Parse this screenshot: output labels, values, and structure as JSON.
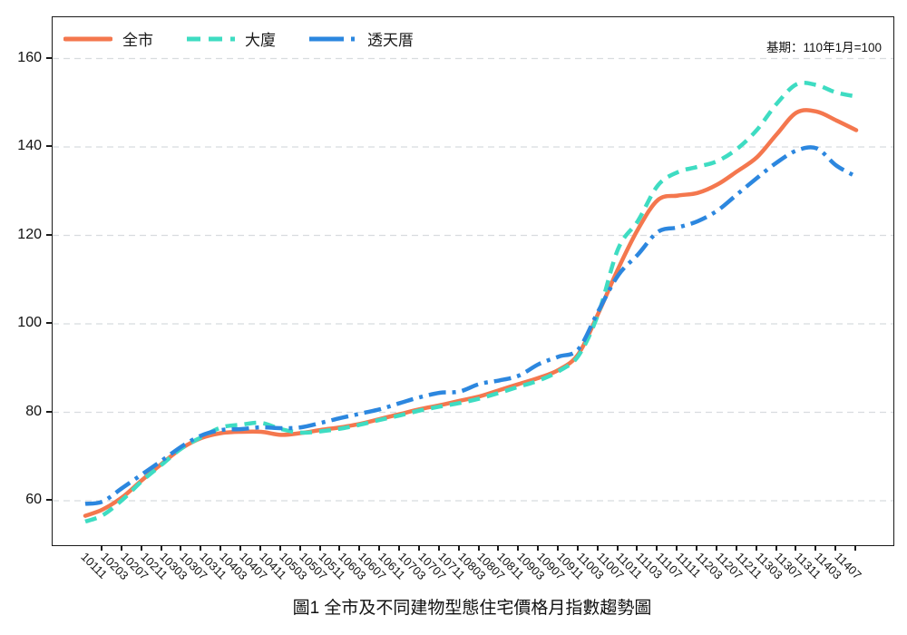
{
  "figure": {
    "base_note": "基期：110年1月=100",
    "title": "圖1 全市及不同建物型態住宅價格月指數趨勢圖"
  },
  "chart_data": {
    "type": "line",
    "title": "圖1 全市及不同建物型態住宅價格月指數趨勢圖",
    "annotation": "基期：110年1月=100",
    "xlabel": "",
    "ylabel": "",
    "y_ticks": [
      60,
      80,
      100,
      120,
      140,
      160
    ],
    "ylim": [
      50,
      169
    ],
    "grid": "horizontal-dashed",
    "legend_position": "top-left-inside",
    "categories": [
      "10111",
      "10203",
      "10207",
      "10211",
      "10303",
      "10307",
      "10311",
      "10403",
      "10407",
      "10411",
      "10503",
      "10507",
      "10511",
      "10603",
      "10607",
      "10611",
      "10703",
      "10707",
      "10711",
      "10803",
      "10807",
      "10811",
      "10903",
      "10907",
      "10911",
      "11003",
      "11007",
      "11011",
      "11103",
      "11107",
      "11111",
      "11203",
      "11207",
      "11211",
      "11303",
      "11307",
      "11311",
      "11403",
      "11407"
    ],
    "series": [
      {
        "name": "全市",
        "color": "#F4774E",
        "style": "solid",
        "lead_in_value": 56.6,
        "values": [
          58.0,
          60.8,
          64.7,
          68.4,
          71.9,
          74.2,
          75.3,
          75.6,
          75.6,
          74.9,
          75.3,
          76.0,
          76.6,
          77.4,
          78.5,
          79.6,
          80.7,
          81.6,
          82.6,
          83.6,
          85.0,
          86.4,
          87.8,
          89.6,
          93.2,
          102.4,
          112.5,
          121.4,
          128.0,
          129.0,
          129.6,
          131.5,
          134.5,
          137.7,
          142.9,
          147.8,
          148.0,
          146.0,
          143.8
        ]
      },
      {
        "name": "大廈",
        "color": "#3EDCC2",
        "style": "dashed",
        "lead_in_value": 55.3,
        "values": [
          56.7,
          60.2,
          64.5,
          68.2,
          71.9,
          74.4,
          76.6,
          77.2,
          77.6,
          76.2,
          75.4,
          75.7,
          76.3,
          77.2,
          78.3,
          79.3,
          80.4,
          81.3,
          82.1,
          83.1,
          84.4,
          85.8,
          87.2,
          89.3,
          92.8,
          102.3,
          117.0,
          123.3,
          131.3,
          134.3,
          135.5,
          136.8,
          139.6,
          143.9,
          149.8,
          154.2,
          154.0,
          152.3,
          151.4
        ]
      },
      {
        "name": "透天厝",
        "color": "#2C87DF",
        "style": "dashdot",
        "lead_in_value": 59.3,
        "values": [
          59.8,
          62.9,
          66.0,
          69.1,
          72.3,
          74.8,
          76.0,
          76.2,
          76.6,
          76.4,
          76.6,
          77.6,
          78.7,
          79.7,
          80.7,
          82.1,
          83.4,
          84.4,
          84.7,
          86.4,
          87.2,
          88.3,
          90.9,
          92.6,
          94.3,
          102.9,
          111.0,
          115.7,
          120.8,
          121.8,
          123.2,
          125.6,
          129.3,
          133.0,
          136.5,
          139.2,
          139.7,
          135.8,
          133.3
        ]
      }
    ],
    "style_colors": {
      "grid": "#d8dcdf",
      "axis": "#1a1a1a",
      "text": "#111111"
    }
  }
}
